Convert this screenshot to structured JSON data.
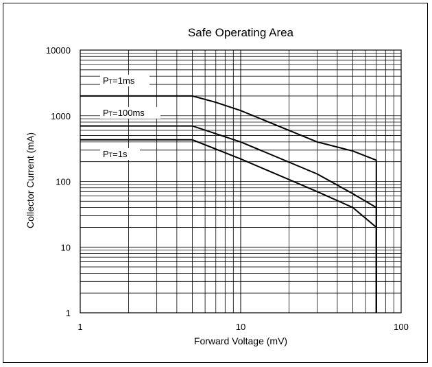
{
  "chart_data": {
    "type": "line",
    "title": "Safe Operating Area",
    "xlabel": "Forward Voltage (mV)",
    "ylabel": "Collector Current (mA)",
    "xscale": "log",
    "yscale": "log",
    "xlim": [
      1,
      100
    ],
    "ylim": [
      1,
      10000
    ],
    "x_ticks": [
      "1",
      "10",
      "100"
    ],
    "y_ticks": [
      "1",
      "10",
      "100",
      "1000",
      "10000"
    ],
    "grid": true,
    "series": [
      {
        "name": "PT=1ms",
        "label_main": "P",
        "label_sub": "T",
        "label_rest": "=1ms",
        "points": [
          [
            1,
            2000
          ],
          [
            5,
            2000
          ],
          [
            7,
            1600
          ],
          [
            10,
            1200
          ],
          [
            30,
            400
          ],
          [
            50,
            290
          ],
          [
            70,
            210
          ],
          [
            70,
            1
          ]
        ]
      },
      {
        "name": "PT=100ms",
        "label_main": "P",
        "label_sub": "T",
        "label_rest": "=100ms",
        "points": [
          [
            1,
            700
          ],
          [
            5,
            700
          ],
          [
            10,
            400
          ],
          [
            30,
            130
          ],
          [
            50,
            65
          ],
          [
            70,
            40
          ],
          [
            70,
            1
          ]
        ]
      },
      {
        "name": "PT=1s",
        "label_main": "P",
        "label_sub": "T",
        "label_rest": "=1s",
        "points": [
          [
            1,
            430
          ],
          [
            5,
            430
          ],
          [
            10,
            220
          ],
          [
            30,
            70
          ],
          [
            50,
            40
          ],
          [
            70,
            20
          ],
          [
            70,
            1
          ]
        ]
      }
    ]
  }
}
